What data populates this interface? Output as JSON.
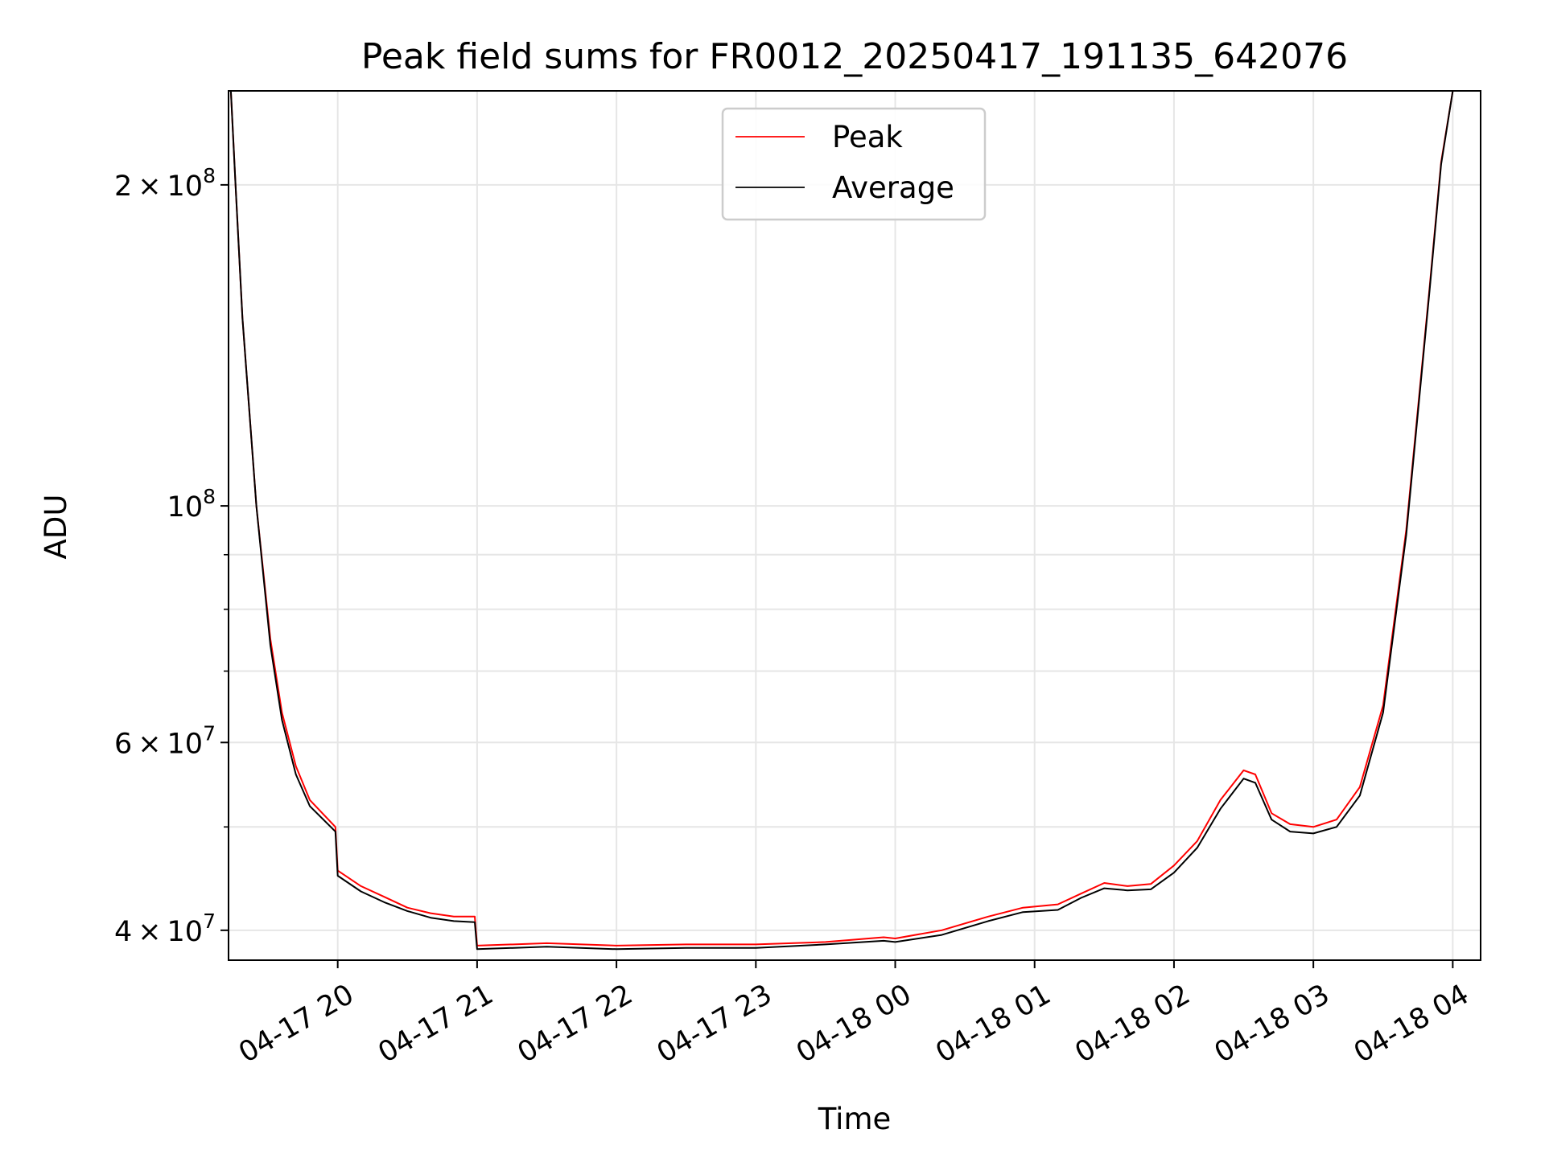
{
  "chart_data": {
    "type": "line",
    "title": "Peak field sums for FR0012_20250417_191135_642076",
    "xlabel": "Time",
    "ylabel": "ADU",
    "yscale": "log",
    "ylim": [
      37500000,
      245000000
    ],
    "xlim": [
      "04-17 19:13",
      "04-18 04:12"
    ],
    "grid": true,
    "legend_position": "top-center",
    "x_ticks": [
      "04-17 20",
      "04-17 21",
      "04-17 22",
      "04-17 23",
      "04-18 00",
      "04-18 01",
      "04-18 02",
      "04-18 03",
      "04-18 04"
    ],
    "y_ticks": [
      {
        "value": 40000000,
        "base": "4 × 10",
        "exp": "7"
      },
      {
        "value": 60000000,
        "base": "6 × 10",
        "exp": "7"
      },
      {
        "value": 100000000,
        "base": "10",
        "exp": "8"
      },
      {
        "value": 200000000,
        "base": "2 × 10",
        "exp": "8"
      }
    ],
    "y_minor_ticks": [
      50000000,
      70000000,
      80000000,
      90000000
    ],
    "series": [
      {
        "name": "Peak",
        "color": "#ff0000",
        "points": [
          [
            "04-17 19:14",
            245000000
          ],
          [
            "04-17 19:16",
            200000000
          ],
          [
            "04-17 19:19",
            150000000
          ],
          [
            "04-17 19:25",
            100000000
          ],
          [
            "04-17 19:31",
            75000000
          ],
          [
            "04-17 19:36",
            64000000
          ],
          [
            "04-17 19:42",
            57000000
          ],
          [
            "04-17 19:48",
            53000000
          ],
          [
            "04-17 19:59",
            50000000
          ],
          [
            "04-17 20:00",
            45500000
          ],
          [
            "04-17 20:10",
            44000000
          ],
          [
            "04-17 20:20",
            43000000
          ],
          [
            "04-17 20:30",
            42000000
          ],
          [
            "04-17 20:40",
            41500000
          ],
          [
            "04-17 20:50",
            41200000
          ],
          [
            "04-17 20:59",
            41200000
          ],
          [
            "04-17 21:00",
            38700000
          ],
          [
            "04-17 21:30",
            38900000
          ],
          [
            "04-17 22:00",
            38700000
          ],
          [
            "04-17 22:30",
            38800000
          ],
          [
            "04-17 23:00",
            38800000
          ],
          [
            "04-17 23:30",
            39000000
          ],
          [
            "04-17 23:55",
            39400000
          ],
          [
            "04-18 00:00",
            39300000
          ],
          [
            "04-18 00:20",
            40000000
          ],
          [
            "04-18 00:40",
            41200000
          ],
          [
            "04-18 00:55",
            42000000
          ],
          [
            "04-18 01:10",
            42300000
          ],
          [
            "04-18 01:20",
            43300000
          ],
          [
            "04-18 01:30",
            44300000
          ],
          [
            "04-18 01:40",
            44000000
          ],
          [
            "04-18 01:50",
            44200000
          ],
          [
            "04-18 02:00",
            46000000
          ],
          [
            "04-18 02:10",
            48500000
          ],
          [
            "04-18 02:20",
            53000000
          ],
          [
            "04-18 02:30",
            56500000
          ],
          [
            "04-18 02:35",
            56000000
          ],
          [
            "04-18 02:42",
            51500000
          ],
          [
            "04-18 02:50",
            50300000
          ],
          [
            "04-18 03:00",
            50000000
          ],
          [
            "04-18 03:10",
            50800000
          ],
          [
            "04-18 03:20",
            54500000
          ],
          [
            "04-18 03:30",
            65000000
          ],
          [
            "04-18 03:40",
            95000000
          ],
          [
            "04-18 03:50",
            160000000
          ],
          [
            "04-18 03:55",
            210000000
          ],
          [
            "04-18 04:00",
            245000000
          ]
        ]
      },
      {
        "name": "Average",
        "color": "#000000",
        "points": [
          [
            "04-17 19:14",
            245000000
          ],
          [
            "04-17 19:16",
            200000000
          ],
          [
            "04-17 19:19",
            150000000
          ],
          [
            "04-17 19:25",
            100000000
          ],
          [
            "04-17 19:31",
            74000000
          ],
          [
            "04-17 19:36",
            63000000
          ],
          [
            "04-17 19:42",
            56000000
          ],
          [
            "04-17 19:48",
            52300000
          ],
          [
            "04-17 19:59",
            49500000
          ],
          [
            "04-17 20:00",
            45000000
          ],
          [
            "04-17 20:10",
            43500000
          ],
          [
            "04-17 20:20",
            42500000
          ],
          [
            "04-17 20:30",
            41700000
          ],
          [
            "04-17 20:40",
            41100000
          ],
          [
            "04-17 20:50",
            40800000
          ],
          [
            "04-17 20:59",
            40700000
          ],
          [
            "04-17 21:00",
            38400000
          ],
          [
            "04-17 21:30",
            38600000
          ],
          [
            "04-17 22:00",
            38400000
          ],
          [
            "04-17 22:30",
            38500000
          ],
          [
            "04-17 23:00",
            38500000
          ],
          [
            "04-17 23:30",
            38800000
          ],
          [
            "04-17 23:55",
            39100000
          ],
          [
            "04-18 00:00",
            39000000
          ],
          [
            "04-18 00:20",
            39600000
          ],
          [
            "04-18 00:40",
            40800000
          ],
          [
            "04-18 00:55",
            41600000
          ],
          [
            "04-18 01:10",
            41800000
          ],
          [
            "04-18 01:20",
            42900000
          ],
          [
            "04-18 01:30",
            43800000
          ],
          [
            "04-18 01:40",
            43600000
          ],
          [
            "04-18 01:50",
            43700000
          ],
          [
            "04-18 02:00",
            45300000
          ],
          [
            "04-18 02:10",
            47800000
          ],
          [
            "04-18 02:20",
            52000000
          ],
          [
            "04-18 02:30",
            55500000
          ],
          [
            "04-18 02:35",
            55000000
          ],
          [
            "04-18 02:42",
            50800000
          ],
          [
            "04-18 02:50",
            49500000
          ],
          [
            "04-18 03:00",
            49300000
          ],
          [
            "04-18 03:10",
            50000000
          ],
          [
            "04-18 03:20",
            53500000
          ],
          [
            "04-18 03:30",
            64000000
          ],
          [
            "04-18 03:40",
            94000000
          ],
          [
            "04-18 03:50",
            159000000
          ],
          [
            "04-18 03:55",
            209000000
          ],
          [
            "04-18 04:00",
            245000000
          ]
        ]
      }
    ]
  }
}
